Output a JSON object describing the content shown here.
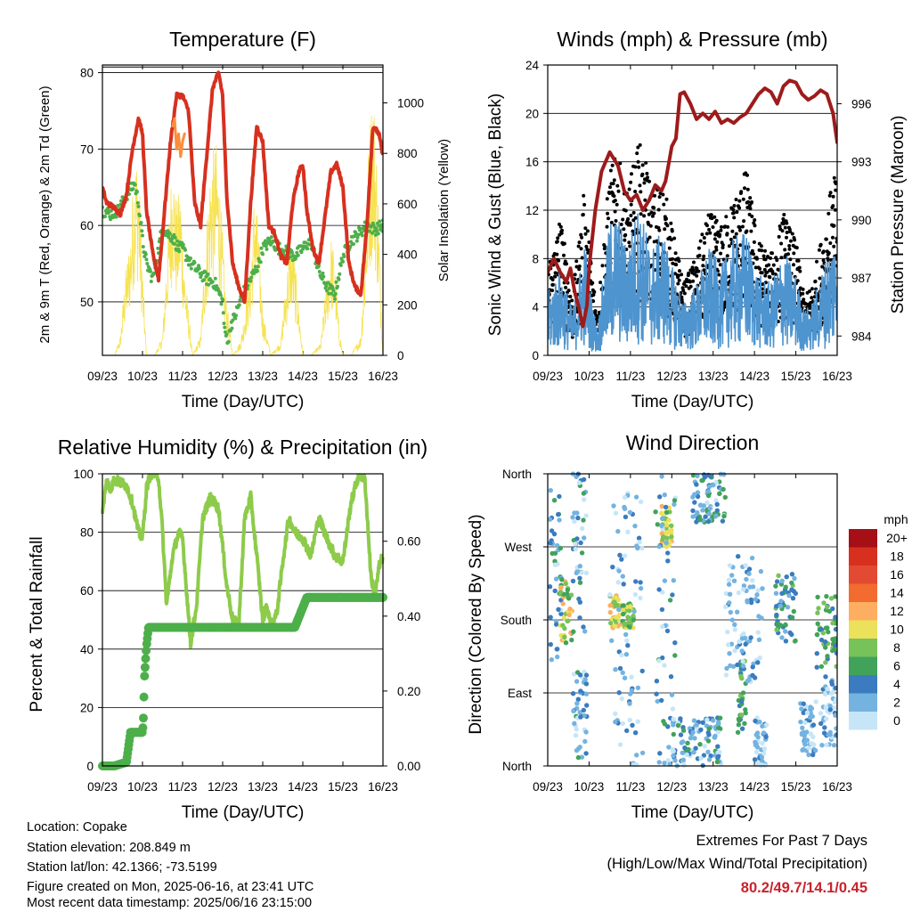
{
  "chart_data": [
    {
      "type": "line",
      "title": "Temperature (F)",
      "xlabel": "Time (Day/UTC)",
      "ylabel": "2m & 9m T (Red, Orange) & 2m Td (Green)",
      "y2label": "Solar Insolation (Yellow)",
      "x_ticks": [
        "09/23",
        "10/23",
        "11/23",
        "12/23",
        "13/23",
        "14/23",
        "15/23",
        "16/23"
      ],
      "ylim": [
        43,
        81
      ],
      "y_ticks": [
        50,
        60,
        70,
        80
      ],
      "y2lim": [
        0,
        1150
      ],
      "y2_ticks": [
        0,
        200,
        400,
        600,
        800,
        1000
      ],
      "grid": true,
      "series": [
        {
          "color": "#d7301f",
          "x": [
            0,
            0.1,
            0.25,
            0.45,
            0.6,
            0.75,
            0.9,
            1.0,
            1.1,
            1.25,
            1.4,
            1.55,
            1.7,
            1.85,
            2.0,
            2.15,
            2.3,
            2.45,
            2.6,
            2.75,
            2.9,
            3.0,
            3.1,
            3.25,
            3.4,
            3.55,
            3.7,
            3.85,
            4.0,
            4.15,
            4.3,
            4.45,
            4.6,
            4.75,
            4.9,
            5.0,
            5.1,
            5.25,
            5.4,
            5.55,
            5.7,
            5.85,
            6.0,
            6.15,
            6.3,
            6.45,
            6.6,
            6.75,
            6.9,
            7.0
          ],
          "values": [
            65,
            63,
            62.5,
            61.5,
            64,
            70,
            74,
            72,
            62,
            56.5,
            53,
            62,
            71,
            77,
            77,
            75,
            63,
            60,
            69,
            78,
            80,
            77,
            64,
            55,
            52,
            50,
            63,
            73,
            71,
            60,
            59,
            56,
            55,
            63,
            67,
            68,
            62,
            57,
            55,
            61,
            67,
            68,
            65,
            55,
            52,
            51,
            60,
            73,
            72,
            69
          ]
        },
        {
          "color": "#fd8d3c",
          "x": [
            1.75,
            1.8,
            1.85,
            1.9,
            1.95,
            2.0,
            2.05
          ],
          "values": [
            73,
            74,
            70,
            72,
            69,
            71,
            72
          ]
        },
        {
          "color": "#4daf4a",
          "x": [
            0,
            0.2,
            0.4,
            0.6,
            0.8,
            0.9,
            1.0,
            1.1,
            1.25,
            1.4,
            1.5,
            1.6,
            1.75,
            1.9,
            2.0,
            2.2,
            2.4,
            2.6,
            2.8,
            3.0,
            3.05,
            3.15,
            3.2,
            3.3,
            3.5,
            3.7,
            3.9,
            4.0,
            4.2,
            4.4,
            4.6,
            4.8,
            5.0,
            5.2,
            5.4,
            5.6,
            5.8,
            6.0,
            6.2,
            6.4,
            6.6,
            6.8,
            7.0
          ],
          "values": [
            62,
            61.5,
            62,
            64,
            65.5,
            63,
            58,
            55,
            53,
            57,
            60,
            59,
            58.5,
            57,
            57,
            55,
            54,
            53,
            52.5,
            50,
            46,
            45,
            47,
            48,
            51,
            53,
            55,
            57,
            58,
            57,
            56.5,
            56,
            57,
            58,
            54,
            52,
            51,
            56,
            58,
            59,
            60,
            59.5,
            60
          ]
        },
        {
          "color": "#f6e251",
          "axis": "y2",
          "x": [
            0,
            0.3,
            0.45,
            0.55,
            0.7,
            0.8,
            0.9,
            1.0,
            1.1,
            1.3,
            1.5,
            1.6,
            1.75,
            1.85,
            1.95,
            2.05,
            2.25,
            2.45,
            2.55,
            2.7,
            2.85,
            2.95,
            3.05,
            3.25,
            3.45,
            3.55,
            3.7,
            3.8,
            3.9,
            4.0,
            4.2,
            4.45,
            4.55,
            4.7,
            4.8,
            4.9,
            5.0,
            5.2,
            5.45,
            5.55,
            5.7,
            5.8,
            5.9,
            6.0,
            6.2,
            6.45,
            6.55,
            6.65,
            6.75,
            6.85,
            7.0
          ],
          "values": [
            0,
            0,
            80,
            300,
            500,
            820,
            800,
            350,
            0,
            0,
            80,
            400,
            820,
            600,
            700,
            350,
            0,
            80,
            400,
            800,
            850,
            650,
            300,
            0,
            60,
            180,
            380,
            700,
            500,
            180,
            0,
            60,
            250,
            500,
            380,
            200,
            0,
            0,
            50,
            250,
            480,
            400,
            120,
            0,
            0,
            80,
            450,
            900,
            1110,
            800,
            0
          ]
        }
      ]
    },
    {
      "type": "line",
      "title": "Winds (mph) & Pressure (mb)",
      "xlabel": "Time (Day/UTC)",
      "ylabel": "Sonic Wind & Gust (Blue, Black)",
      "y2label": "Station Pressure (Maroon)",
      "x_ticks": [
        "09/23",
        "10/23",
        "11/23",
        "12/23",
        "13/23",
        "14/23",
        "15/23",
        "16/23"
      ],
      "ylim": [
        0,
        24
      ],
      "y_ticks": [
        0,
        4,
        8,
        12,
        16,
        20,
        24
      ],
      "y2lim": [
        983,
        998
      ],
      "y2_ticks": [
        984,
        987,
        990,
        993,
        996
      ],
      "grid": true,
      "series": [
        {
          "name": "Sonic Wind",
          "color": "#4e94cf",
          "x": [
            0,
            0.3,
            0.6,
            0.9,
            1.0,
            1.2,
            1.5,
            1.7,
            1.9,
            2.2,
            2.5,
            2.8,
            3.0,
            3.3,
            3.6,
            3.9,
            4.2,
            4.5,
            4.8,
            5.1,
            5.4,
            5.7,
            6.0,
            6.2,
            6.4,
            6.6,
            6.8,
            7.0
          ],
          "values": [
            3.5,
            5,
            2.5,
            6.5,
            4,
            1.5,
            7.5,
            8,
            6,
            8.5,
            6,
            7,
            5,
            3,
            4,
            6,
            5,
            6.5,
            7,
            4.5,
            4,
            6,
            4.5,
            2.5,
            3,
            4.5,
            6,
            7
          ]
        },
        {
          "name": "Gust",
          "color": "#000000",
          "x": [
            0,
            0.3,
            0.6,
            0.9,
            1.0,
            1.2,
            1.5,
            1.7,
            1.9,
            2.2,
            2.5,
            2.8,
            3.0,
            3.3,
            3.6,
            3.9,
            4.2,
            4.5,
            4.8,
            5.1,
            5.4,
            5.7,
            6.0,
            6.2,
            6.4,
            6.6,
            6.8,
            7.0
          ],
          "values": [
            6,
            10,
            4,
            12,
            8,
            3,
            13,
            14,
            11,
            15,
            12,
            12,
            9,
            5,
            7,
            10,
            9,
            11,
            13,
            8,
            7,
            10,
            8,
            4,
            5,
            8,
            11,
            13
          ]
        },
        {
          "name": "Station Pressure",
          "color": "#9e1b1b",
          "axis": "y2",
          "x": [
            0,
            0.15,
            0.3,
            0.45,
            0.55,
            0.65,
            0.75,
            0.85,
            0.95,
            1.0,
            1.15,
            1.3,
            1.5,
            1.7,
            1.85,
            2.0,
            2.15,
            2.3,
            2.45,
            2.6,
            2.75,
            2.85,
            2.95,
            3.0,
            3.1,
            3.2,
            3.3,
            3.45,
            3.6,
            3.75,
            3.9,
            4.05,
            4.2,
            4.35,
            4.5,
            4.65,
            4.8,
            4.95,
            5.1,
            5.25,
            5.4,
            5.55,
            5.7,
            5.85,
            6.0,
            6.15,
            6.3,
            6.45,
            6.6,
            6.75,
            6.9,
            7.0
          ],
          "values": [
            987.3,
            988,
            987.3,
            986.8,
            987.5,
            986.3,
            985.5,
            984.5,
            985.6,
            987.5,
            990.5,
            992.5,
            993.5,
            992.8,
            991.5,
            991,
            991.3,
            990.5,
            991,
            991.8,
            991.5,
            992,
            993.2,
            993.8,
            994.2,
            996.5,
            996.6,
            996,
            995.2,
            995.5,
            995.2,
            995.6,
            995,
            995.2,
            995,
            995.3,
            995.5,
            996,
            996.5,
            996.8,
            996.6,
            996,
            996.9,
            997.2,
            997.1,
            996.5,
            996.2,
            996.4,
            996.7,
            996.5,
            995.5,
            994
          ]
        }
      ]
    },
    {
      "type": "line",
      "title": "Relative Humidity (%) & Precipitation (in)",
      "xlabel": "Time (Day/UTC)",
      "ylabel": "Percent & Total Rainfall",
      "x_ticks": [
        "09/23",
        "10/23",
        "11/23",
        "12/23",
        "13/23",
        "14/23",
        "15/23",
        "16/23"
      ],
      "ylim": [
        0,
        100
      ],
      "y_ticks": [
        0,
        20,
        40,
        60,
        80,
        100
      ],
      "y2lim": [
        0,
        0.78
      ],
      "y2_ticks": [
        "0.00",
        "0.20",
        "0.40",
        "0.60"
      ],
      "grid": true,
      "series": [
        {
          "name": "Relative Humidity",
          "color": "#8dcb4a",
          "x": [
            0,
            0.1,
            0.2,
            0.3,
            0.45,
            0.6,
            0.75,
            0.9,
            1.0,
            1.1,
            1.2,
            1.3,
            1.4,
            1.5,
            1.6,
            1.75,
            1.9,
            2.0,
            2.1,
            2.2,
            2.35,
            2.5,
            2.7,
            2.9,
            3.0,
            3.1,
            3.25,
            3.4,
            3.55,
            3.7,
            3.85,
            4.0,
            4.1,
            4.2,
            4.35,
            4.5,
            4.65,
            4.8,
            5.0,
            5.2,
            5.4,
            5.6,
            5.8,
            6.0,
            6.2,
            6.4,
            6.55,
            6.7,
            6.8,
            6.9,
            7.0
          ],
          "values": [
            88,
            97,
            95,
            98,
            97,
            96,
            90,
            80,
            78,
            95,
            100,
            100,
            99,
            80,
            55,
            72,
            80,
            78,
            60,
            42,
            55,
            85,
            92,
            88,
            75,
            62,
            50,
            48,
            85,
            92,
            72,
            50,
            55,
            48,
            52,
            70,
            85,
            80,
            78,
            72,
            85,
            78,
            72,
            70,
            90,
            100,
            98,
            65,
            58,
            68,
            72
          ]
        },
        {
          "name": "Total Rainfall",
          "color": "#4daf4a",
          "axis": "y2",
          "x": [
            0,
            0.3,
            0.6,
            0.7,
            0.8,
            0.9,
            1.0,
            1.02,
            1.05,
            1.08,
            1.1,
            1.15,
            1.3,
            2.0,
            3.0,
            4.0,
            4.8,
            4.95,
            5.1,
            6.0,
            7.0
          ],
          "values": [
            0,
            0,
            0.01,
            0.09,
            0.09,
            0.09,
            0.09,
            0.12,
            0.24,
            0.29,
            0.32,
            0.37,
            0.37,
            0.37,
            0.37,
            0.37,
            0.37,
            0.41,
            0.45,
            0.45,
            0.45
          ]
        }
      ]
    },
    {
      "type": "scatter",
      "title": "Wind Direction",
      "xlabel": "Time (Day/UTC)",
      "ylabel": "Direction (Colored By Speed)",
      "x_ticks": [
        "09/23",
        "10/23",
        "11/23",
        "12/23",
        "13/23",
        "14/23",
        "15/23",
        "16/23"
      ],
      "y_ticks": [
        "North",
        "East",
        "South",
        "West",
        "North"
      ],
      "ylim": [
        0,
        360
      ],
      "grid": true,
      "legend_title": "mph",
      "legend_labels": [
        "20+",
        "18",
        "16",
        "14",
        "12",
        "10",
        "8",
        "6",
        "4",
        "2",
        "0"
      ],
      "legend_colors": [
        "#a50f15",
        "#d7301f",
        "#e34a33",
        "#f26b2f",
        "#fdae61",
        "#ebe15a",
        "#78c25a",
        "#41a35a",
        "#3a7cbf",
        "#74b3e0",
        "#c6e6f8"
      ],
      "clusters": [
        {
          "x": [
            0.05,
            0.35
          ],
          "dir": [
            120,
            340
          ],
          "speed": [
            0,
            6
          ]
        },
        {
          "x": [
            0.3,
            0.6
          ],
          "dir": [
            150,
            230
          ],
          "speed": [
            6,
            12
          ]
        },
        {
          "x": [
            0.6,
            0.95
          ],
          "dir": [
            10,
            120
          ],
          "speed": [
            0,
            6
          ]
        },
        {
          "x": [
            0.6,
            0.95
          ],
          "dir": [
            160,
            360
          ],
          "speed": [
            0,
            6
          ]
        },
        {
          "x": [
            1.5,
            1.8
          ],
          "dir": [
            170,
            210
          ],
          "speed": [
            8,
            12
          ]
        },
        {
          "x": [
            1.8,
            2.1
          ],
          "dir": [
            170,
            200
          ],
          "speed": [
            6,
            10
          ]
        },
        {
          "x": [
            1.5,
            2.3
          ],
          "dir": [
            0,
            340
          ],
          "speed": [
            0,
            4
          ]
        },
        {
          "x": [
            2.75,
            3.0
          ],
          "dir": [
            270,
            320
          ],
          "speed": [
            8,
            12
          ]
        },
        {
          "x": [
            2.6,
            3.1
          ],
          "dir": [
            0,
            360
          ],
          "speed": [
            0,
            6
          ]
        },
        {
          "x": [
            3.0,
            4.2
          ],
          "dir": [
            0,
            60
          ],
          "speed": [
            0,
            6
          ]
        },
        {
          "x": [
            3.5,
            4.3
          ],
          "dir": [
            300,
            360
          ],
          "speed": [
            0,
            6
          ]
        },
        {
          "x": [
            4.6,
            4.8
          ],
          "dir": [
            40,
            130
          ],
          "speed": [
            4,
            8
          ]
        },
        {
          "x": [
            4.3,
            5.2
          ],
          "dir": [
            100,
            260
          ],
          "speed": [
            0,
            4
          ]
        },
        {
          "x": [
            5.0,
            5.3
          ],
          "dir": [
            0,
            60
          ],
          "speed": [
            0,
            4
          ]
        },
        {
          "x": [
            5.5,
            6.0
          ],
          "dir": [
            150,
            240
          ],
          "speed": [
            2,
            8
          ]
        },
        {
          "x": [
            6.1,
            6.5
          ],
          "dir": [
            10,
            80
          ],
          "speed": [
            0,
            4
          ]
        },
        {
          "x": [
            6.5,
            7.0
          ],
          "dir": [
            120,
            210
          ],
          "speed": [
            4,
            8
          ]
        },
        {
          "x": [
            6.6,
            7.0
          ],
          "dir": [
            20,
            110
          ],
          "speed": [
            0,
            4
          ]
        }
      ]
    }
  ],
  "info": {
    "location": "Location: Copake",
    "elevation": "Station elevation: 208.849 m",
    "latlon": "Station lat/lon: 42.1366; -73.5199",
    "created": "Figure created on Mon, 2025-06-16, at 23:41 UTC",
    "recent": "Most recent data timestamp: 2025/06/16 23:15:00"
  },
  "extremes": {
    "line1": "Extremes For Past 7 Days",
    "line2": "(High/Low/Max Wind/Total Precipitation)",
    "values": "80.2/49.7/14.1/0.45"
  }
}
